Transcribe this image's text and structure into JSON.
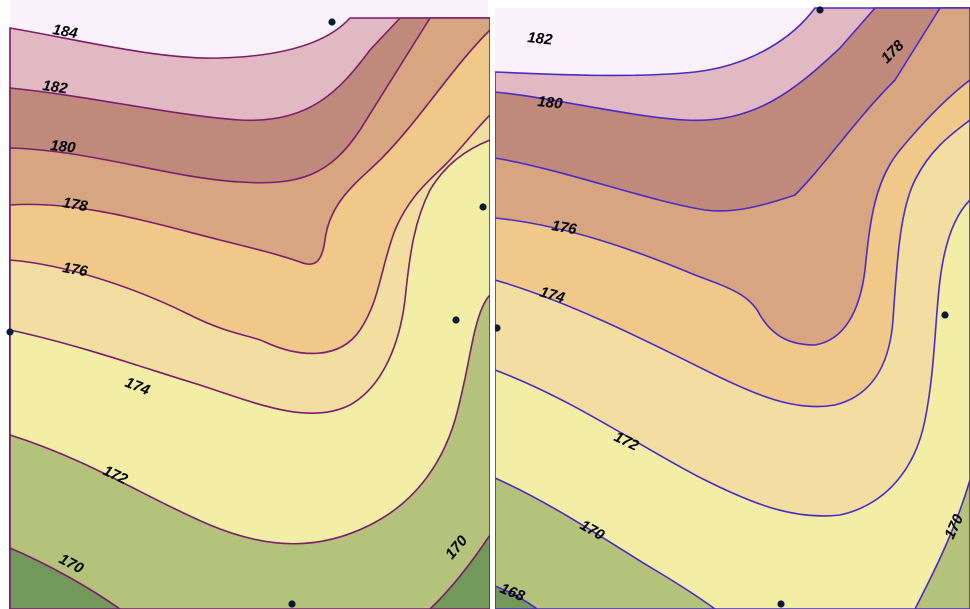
{
  "colors": {
    "band_184": "#fbf1fb",
    "band_182": "#e2b9c3",
    "band_180": "#bf8a7c",
    "band_178": "#d7a57f",
    "band_176": "#f0c98a",
    "band_174": "#f2dea0",
    "band_172": "#f2eea6",
    "band_170": "#b4c27c",
    "band_168": "#72995a",
    "left_contour_line": "#7a1f6a",
    "right_contour_line": "#4b2bc2",
    "sample_point": "#0b1a33"
  },
  "left_map": {
    "labels": {
      "c184": "184",
      "c182": "182",
      "c180": "180",
      "c178": "178",
      "c176": "176",
      "c174": "174",
      "c172": "172",
      "c170a": "170",
      "c170b": "170"
    }
  },
  "right_map": {
    "labels": {
      "c182": "182",
      "c180": "180",
      "c178": "178",
      "c176": "176",
      "c174": "174",
      "c172": "172",
      "c170a": "170",
      "c170b": "170",
      "c168": "168"
    }
  }
}
